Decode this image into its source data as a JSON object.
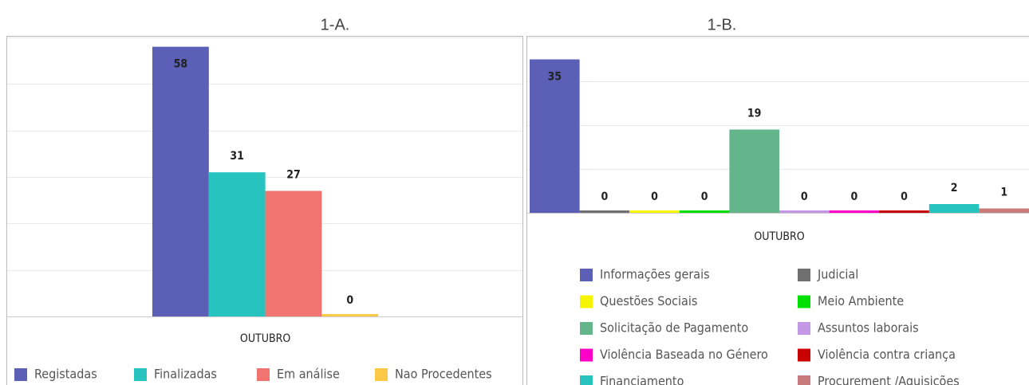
{
  "chart_data": [
    {
      "type": "bar",
      "title": "1-A.",
      "categories": [
        "OUTUBRO"
      ],
      "series": [
        {
          "name": "Registadas",
          "color": "#5b5fb5",
          "values": [
            58
          ]
        },
        {
          "name": "Finalizadas",
          "color": "#26c3bf",
          "values": [
            31
          ]
        },
        {
          "name": "Em análise",
          "color": "#f27470",
          "values": [
            27
          ]
        },
        {
          "name": "Nao Procedentes",
          "color": "#fcc847",
          "values": [
            0
          ]
        }
      ],
      "ylim": [
        0,
        60
      ],
      "yticks": [
        0,
        10,
        20,
        30,
        40,
        50,
        60
      ],
      "grid": true,
      "legend": "bottom"
    },
    {
      "type": "bar",
      "title": "1-B.",
      "categories": [
        "OUTUBRO"
      ],
      "series": [
        {
          "name": "Informações gerais",
          "color": "#5b5fb5",
          "values": [
            35
          ]
        },
        {
          "name": "Judicial",
          "color": "#707070",
          "values": [
            0
          ]
        },
        {
          "name": "Questões Sociais",
          "color": "#f5f500",
          "values": [
            0
          ]
        },
        {
          "name": "Meio Ambiente",
          "color": "#00e000",
          "values": [
            0
          ]
        },
        {
          "name": "Solicitação de Pagamento",
          "color": "#64b58c",
          "values": [
            19
          ]
        },
        {
          "name": "Assuntos laborais",
          "color": "#c497e6",
          "values": [
            0
          ]
        },
        {
          "name": "Violência Baseada no Género",
          "color": "#ff00c8",
          "values": [
            0
          ]
        },
        {
          "name": "Violência contra criança",
          "color": "#c80000",
          "values": [
            0
          ]
        },
        {
          "name": "Financiamento",
          "color": "#26c3bf",
          "values": [
            2
          ]
        },
        {
          "name": "Procurement /Aquisições",
          "color": "#c97a7a",
          "values": [
            1
          ]
        }
      ],
      "ylim": [
        0,
        40
      ],
      "yticks": [
        0,
        10,
        20,
        30,
        40
      ],
      "grid": true,
      "legend": "bottom"
    }
  ]
}
